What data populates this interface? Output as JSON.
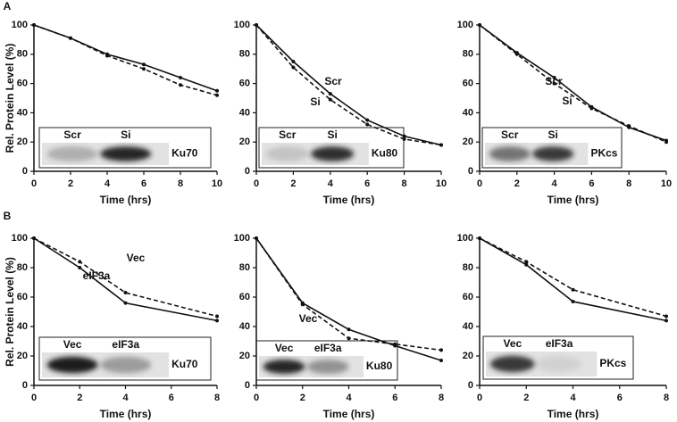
{
  "chart_data": [
    {
      "type": "line",
      "panel": "A",
      "ylabel": "Rel. Protein Level (%)",
      "xlabel": "Time (hrs)",
      "x": [
        0,
        2,
        4,
        6,
        8,
        10
      ],
      "xlim": [
        0,
        10
      ],
      "xticks": [
        0,
        2,
        4,
        6,
        8,
        10
      ],
      "ylim": [
        0,
        100
      ],
      "yticks": [
        0,
        20,
        40,
        60,
        80,
        100
      ],
      "series": [
        {
          "color": "#111111",
          "style": "solid",
          "values": [
            100,
            91,
            80,
            73,
            64,
            55
          ]
        },
        {
          "color": "#111111",
          "style": "dashed",
          "values": [
            100,
            91,
            79,
            70,
            59,
            52
          ]
        }
      ],
      "inset": {
        "lanes": [
          "Scr",
          "Si"
        ],
        "protein": "Ku70"
      }
    },
    {
      "type": "line",
      "xlabel": "Time (hrs)",
      "x": [
        0,
        2,
        4,
        6,
        8,
        10
      ],
      "xlim": [
        0,
        10
      ],
      "xticks": [
        0,
        2,
        4,
        6,
        8,
        10
      ],
      "ylim": [
        0,
        100
      ],
      "yticks": [
        0,
        20,
        40,
        60,
        80,
        100
      ],
      "series": [
        {
          "name": "Scr",
          "color": "#111111",
          "style": "solid",
          "values": [
            100,
            75,
            53,
            35,
            24,
            18
          ]
        },
        {
          "name": "Si",
          "color": "#111111",
          "style": "dashed",
          "values": [
            100,
            71,
            49,
            32,
            22,
            18
          ]
        }
      ],
      "inset": {
        "lanes": [
          "Scr",
          "Si"
        ],
        "protein": "Ku80"
      }
    },
    {
      "type": "line",
      "xlabel": "Time (hrs)",
      "x": [
        0,
        2,
        4,
        6,
        8,
        10
      ],
      "xlim": [
        0,
        10
      ],
      "xticks": [
        0,
        2,
        4,
        6,
        8,
        10
      ],
      "ylim": [
        0,
        100
      ],
      "yticks": [
        0,
        20,
        40,
        60,
        80,
        100
      ],
      "series": [
        {
          "name": "Scr",
          "color": "#111111",
          "style": "solid",
          "values": [
            100,
            81,
            64,
            44,
            30,
            21
          ]
        },
        {
          "name": "Si",
          "color": "#111111",
          "style": "dashed",
          "values": [
            100,
            80,
            60,
            43,
            31,
            20
          ]
        }
      ],
      "inset": {
        "lanes": [
          "Scr",
          "Si"
        ],
        "protein": "PKcs"
      }
    },
    {
      "type": "line",
      "panel": "B",
      "ylabel": "Rel. Protein Level (%)",
      "xlabel": "Time (hrs)",
      "x": [
        0,
        2,
        4,
        8
      ],
      "xlim": [
        0,
        8
      ],
      "xticks": [
        0,
        2,
        4,
        6,
        8
      ],
      "ylim": [
        0,
        100
      ],
      "yticks": [
        0,
        20,
        40,
        60,
        80,
        100
      ],
      "series": [
        {
          "name": "eIF3a",
          "color": "#111111",
          "style": "solid",
          "values": [
            100,
            80,
            56,
            44
          ]
        },
        {
          "name": "Vec",
          "color": "#111111",
          "style": "dashed",
          "values": [
            100,
            84,
            63,
            47
          ]
        }
      ],
      "inset": {
        "lanes": [
          "Vec",
          "eIF3a"
        ],
        "protein": "Ku70"
      }
    },
    {
      "type": "line",
      "xlabel": "Time (hrs)",
      "x": [
        0,
        2,
        4,
        6,
        8
      ],
      "xlim": [
        0,
        8
      ],
      "xticks": [
        0,
        2,
        4,
        6,
        8
      ],
      "ylim": [
        0,
        100
      ],
      "yticks": [
        0,
        20,
        40,
        60,
        80,
        100
      ],
      "series": [
        {
          "color": "#111111",
          "style": "solid",
          "values": [
            100,
            56,
            38,
            27,
            17
          ]
        },
        {
          "name": "Vec",
          "color": "#111111",
          "style": "dashed",
          "values": [
            100,
            55,
            32,
            28,
            24
          ]
        }
      ],
      "inset": {
        "lanes": [
          "Vec",
          "eIF3a"
        ],
        "protein": "Ku80"
      }
    },
    {
      "type": "line",
      "xlabel": "Time (hrs)",
      "x": [
        0,
        2,
        4,
        8
      ],
      "xlim": [
        0,
        8
      ],
      "xticks": [
        0,
        2,
        4,
        6,
        8
      ],
      "ylim": [
        0,
        100
      ],
      "yticks": [
        0,
        20,
        40,
        60,
        80,
        100
      ],
      "series": [
        {
          "color": "#111111",
          "style": "solid",
          "values": [
            100,
            82,
            57,
            44
          ]
        },
        {
          "color": "#111111",
          "style": "dashed",
          "values": [
            100,
            84,
            65,
            47
          ]
        }
      ],
      "inset": {
        "lanes": [
          "Vec",
          "eIF3a"
        ],
        "protein": "PKcs"
      }
    }
  ]
}
